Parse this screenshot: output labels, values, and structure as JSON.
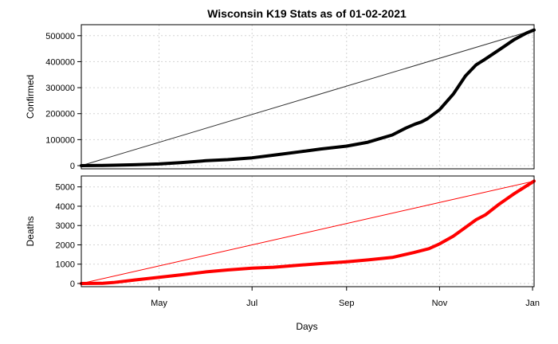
{
  "chart_data": {
    "type": "line",
    "title": "Wisconsin K19 Stats as of 01-02-2021",
    "xlabel": "Days",
    "x_tick_labels": [
      "May",
      "Jul",
      "Sep",
      "Nov",
      "Jan"
    ],
    "x_tick_dates": [
      "2020-05-01",
      "2020-07-01",
      "2020-09-01",
      "2020-11-01",
      "2021-01-01"
    ],
    "x_range": [
      "2020-03-11",
      "2021-01-02"
    ],
    "grid": true,
    "panels": [
      {
        "ylabel": "Confirmed",
        "ylim": [
          0,
          530000
        ],
        "y_ticks": [
          0,
          100000,
          200000,
          300000,
          400000,
          500000
        ],
        "series_color": "#000000",
        "trend_color": "#333333",
        "trend_line": [
          [
            "2020-03-11",
            0
          ],
          [
            "2021-01-02",
            522000
          ]
        ],
        "series": [
          [
            "2020-03-11",
            0
          ],
          [
            "2020-03-25",
            500
          ],
          [
            "2020-04-01",
            1500
          ],
          [
            "2020-04-15",
            3500
          ],
          [
            "2020-05-01",
            6500
          ],
          [
            "2020-05-15",
            11500
          ],
          [
            "2020-06-01",
            19000
          ],
          [
            "2020-06-15",
            23000
          ],
          [
            "2020-07-01",
            30000
          ],
          [
            "2020-07-15",
            40000
          ],
          [
            "2020-08-01",
            53000
          ],
          [
            "2020-08-15",
            64000
          ],
          [
            "2020-09-01",
            75000
          ],
          [
            "2020-09-15",
            90000
          ],
          [
            "2020-10-01",
            118000
          ],
          [
            "2020-10-10",
            145000
          ],
          [
            "2020-10-16",
            160000
          ],
          [
            "2020-10-20",
            168000
          ],
          [
            "2020-10-24",
            180000
          ],
          [
            "2020-11-01",
            215000
          ],
          [
            "2020-11-10",
            275000
          ],
          [
            "2020-11-18",
            345000
          ],
          [
            "2020-11-25",
            388000
          ],
          [
            "2020-12-01",
            410000
          ],
          [
            "2020-12-10",
            445000
          ],
          [
            "2020-12-20",
            485000
          ],
          [
            "2020-12-28",
            510000
          ],
          [
            "2021-01-02",
            522000
          ]
        ]
      },
      {
        "ylabel": "Deaths",
        "ylim": [
          0,
          5400
        ],
        "y_ticks": [
          0,
          1000,
          2000,
          3000,
          4000,
          5000
        ],
        "series_color": "#ff0000",
        "trend_color": "#ff0000",
        "trend_line": [
          [
            "2020-03-11",
            0
          ],
          [
            "2021-01-02",
            5300
          ]
        ],
        "series": [
          [
            "2020-03-11",
            0
          ],
          [
            "2020-03-25",
            10
          ],
          [
            "2020-04-01",
            50
          ],
          [
            "2020-04-15",
            180
          ],
          [
            "2020-05-01",
            320
          ],
          [
            "2020-05-15",
            440
          ],
          [
            "2020-06-01",
            600
          ],
          [
            "2020-06-15",
            700
          ],
          [
            "2020-07-01",
            790
          ],
          [
            "2020-07-15",
            840
          ],
          [
            "2020-08-01",
            950
          ],
          [
            "2020-08-15",
            1030
          ],
          [
            "2020-09-01",
            1120
          ],
          [
            "2020-09-15",
            1220
          ],
          [
            "2020-10-01",
            1350
          ],
          [
            "2020-10-15",
            1600
          ],
          [
            "2020-10-25",
            1800
          ],
          [
            "2020-11-01",
            2050
          ],
          [
            "2020-11-10",
            2450
          ],
          [
            "2020-11-18",
            2900
          ],
          [
            "2020-11-25",
            3300
          ],
          [
            "2020-12-01",
            3550
          ],
          [
            "2020-12-10",
            4100
          ],
          [
            "2020-12-20",
            4650
          ],
          [
            "2020-12-28",
            5050
          ],
          [
            "2021-01-02",
            5300
          ]
        ]
      }
    ]
  }
}
